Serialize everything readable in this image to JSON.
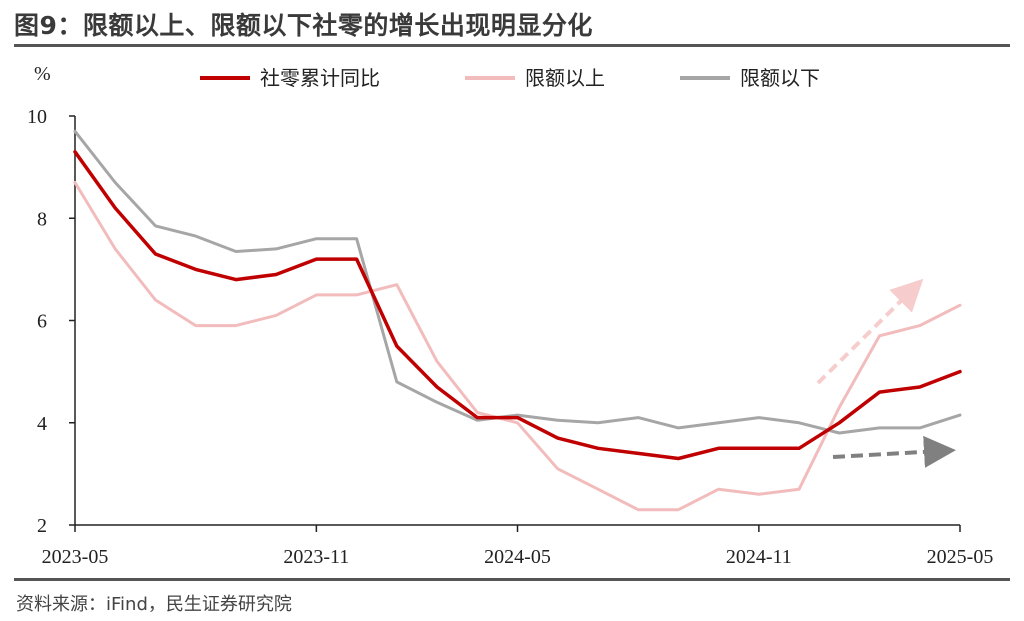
{
  "title": "图9：限额以上、限额以下社零的增长出现明显分化",
  "source": "资料来源：iFind，民生证券研究院",
  "colors": {
    "total": "#c00000",
    "above": "#f2bcbc",
    "below": "#a6a6a6",
    "arrow_up": "#f6cccc",
    "arrow_flat": "#808080"
  },
  "chart_data": {
    "type": "line",
    "ylabel": "%",
    "ylim": [
      2,
      10
    ],
    "yticks": [
      "2",
      "4",
      "6",
      "8",
      "10"
    ],
    "x": [
      "2023-05",
      "2023-06",
      "2023-07",
      "2023-08",
      "2023-09",
      "2023-10",
      "2023-11",
      "2023-12",
      "2024-02",
      "2024-03",
      "2024-04",
      "2024-05",
      "2024-06",
      "2024-07",
      "2024-08",
      "2024-09",
      "2024-10",
      "2024-11",
      "2024-12",
      "2025-02",
      "2025-03",
      "2025-04",
      "2025-05"
    ],
    "xticks": [
      "2023-05",
      "2023-11",
      "2024-05",
      "2024-11",
      "2025-05"
    ],
    "grid": false,
    "legend": "top",
    "series": [
      {
        "key": "total",
        "name": "社零累计同比",
        "values": [
          9.3,
          8.2,
          7.3,
          7.0,
          6.8,
          6.9,
          7.2,
          7.2,
          5.5,
          4.7,
          4.1,
          4.1,
          3.7,
          3.5,
          3.4,
          3.3,
          3.5,
          3.5,
          3.5,
          4.0,
          4.6,
          4.7,
          5.0
        ]
      },
      {
        "key": "above",
        "name": "限额以上",
        "values": [
          8.7,
          7.4,
          6.4,
          5.9,
          5.9,
          6.1,
          6.5,
          6.5,
          6.7,
          5.2,
          4.2,
          4.0,
          3.1,
          2.7,
          2.3,
          2.3,
          2.7,
          2.6,
          2.7,
          4.3,
          5.7,
          5.9,
          6.3
        ]
      },
      {
        "key": "below",
        "name": "限额以下",
        "values": [
          9.7,
          8.7,
          7.85,
          7.65,
          7.35,
          7.4,
          7.6,
          7.6,
          4.8,
          4.4,
          4.05,
          4.15,
          4.05,
          4.0,
          4.1,
          3.9,
          4.0,
          4.1,
          4.0,
          3.8,
          3.9,
          3.9,
          4.15
        ]
      }
    ]
  }
}
